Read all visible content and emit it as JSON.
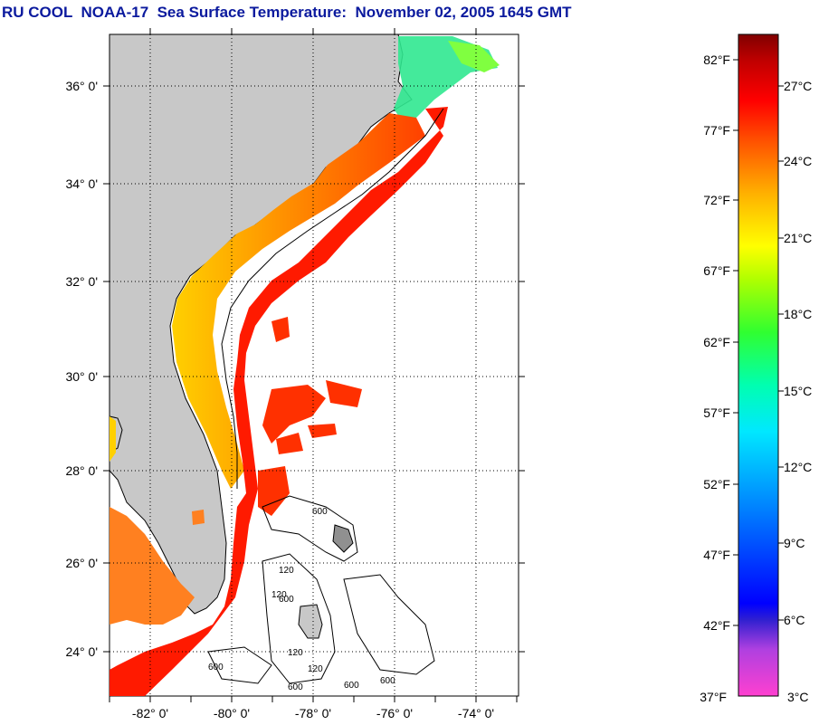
{
  "title": "RU COOL  NOAA-17  Sea Surface Temperature:  November 02, 2005 1645 GMT",
  "map": {
    "lat_labels": [
      "36° 0'",
      "34° 0'",
      "32° 0'",
      "30° 0'",
      "28° 0'",
      "26° 0'",
      "24° 0'"
    ],
    "lon_labels": [
      "-82° 0'",
      "-80° 0'",
      "-78° 0'",
      "-76° 0'",
      "-74° 0'"
    ],
    "contour_labels": [
      "600",
      "120",
      "600",
      "120",
      "600",
      "600",
      "120",
      "600",
      "600",
      "120"
    ],
    "colors": {
      "land": "#c8c8c8",
      "water_no_data": "#ffffff",
      "grid": "#000000"
    }
  },
  "colorbar": {
    "fahrenheit_labels": [
      "82°F",
      "77°F",
      "72°F",
      "67°F",
      "62°F",
      "57°F",
      "52°F",
      "47°F",
      "42°F",
      "37°F"
    ],
    "celsius_labels": [
      "27°C",
      "24°C",
      "21°C",
      "18°C",
      "15°C",
      "12°C",
      "9°C",
      "6°C",
      "3°C"
    ],
    "color_stops": [
      "#ff40c8",
      "#8a2be2",
      "#0000ff",
      "#00c8ff",
      "#00ffc8",
      "#00ff00",
      "#c8ff00",
      "#ffff00",
      "#ffb000",
      "#ff5000",
      "#ff0000",
      "#8b0000"
    ]
  }
}
